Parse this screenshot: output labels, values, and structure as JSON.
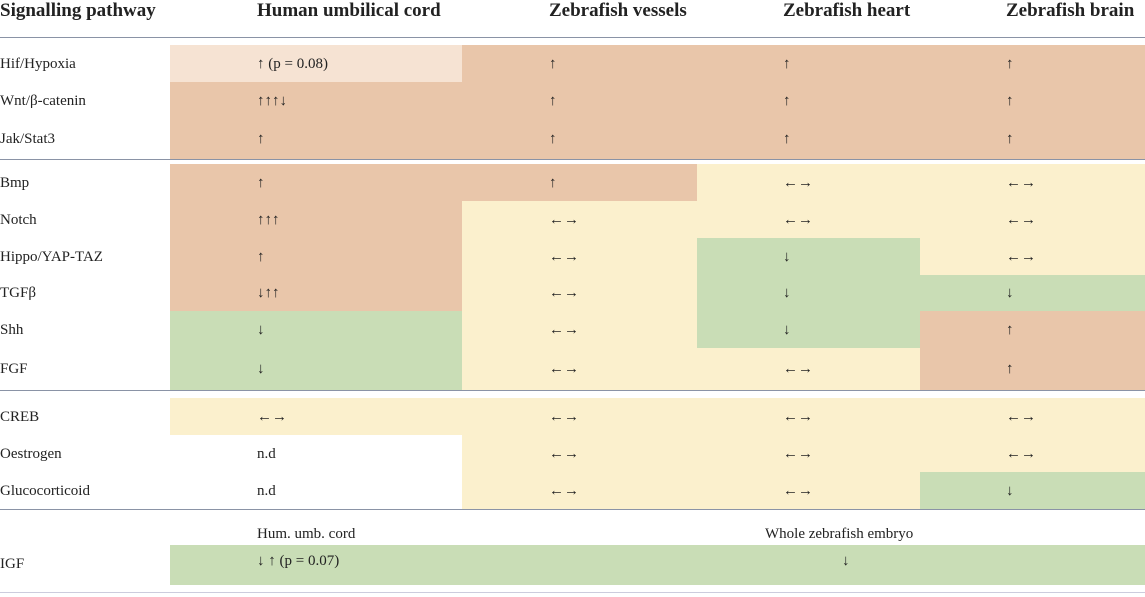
{
  "header": {
    "columns": [
      "Signalling pathway",
      "Human umbilical cord",
      "Zebrafish vessels",
      "Zebrafish heart",
      "Zebrafish brain"
    ]
  },
  "table": {
    "rows": [
      [
        "Hif/Hypoxia",
        "↑ (p = 0.08)",
        "↑",
        "↑",
        "↑"
      ],
      [
        "Wnt/β-catenin",
        "↑↑↑↓",
        "↑",
        "↑",
        "↑"
      ],
      [
        "Jak/Stat3",
        "↑",
        "↑",
        "↑",
        "↑"
      ],
      [
        "Bmp",
        "↑",
        "↑",
        "←→",
        "←→"
      ],
      [
        "Notch",
        "↑↑↑",
        "←→",
        "←→",
        "←→"
      ],
      [
        "Hippo/YAP-TAZ",
        "↑",
        "←→",
        "↓",
        "←→"
      ],
      [
        "TGFβ",
        "↓↑↑",
        "←→",
        "↓",
        "↓"
      ],
      [
        "Shh",
        "↓",
        "←→",
        "↓",
        "↑"
      ],
      [
        "FGF",
        "↓",
        "←→",
        "←→",
        "↑"
      ],
      [
        "CREB",
        "←→",
        "←→",
        "←→",
        "←→"
      ],
      [
        "Oestrogen",
        "n.d",
        "←→",
        "←→",
        "←→"
      ],
      [
        "Glucocorticoid",
        "n.d",
        "←→",
        "←→",
        "↓"
      ]
    ]
  },
  "igf": {
    "subheaders": [
      "Hum. umb. cord",
      "Whole zebrafish embryo"
    ],
    "label": "IGF",
    "human": "↓ ↑ (p = 0.07)",
    "zebrafish": "↓"
  }
}
